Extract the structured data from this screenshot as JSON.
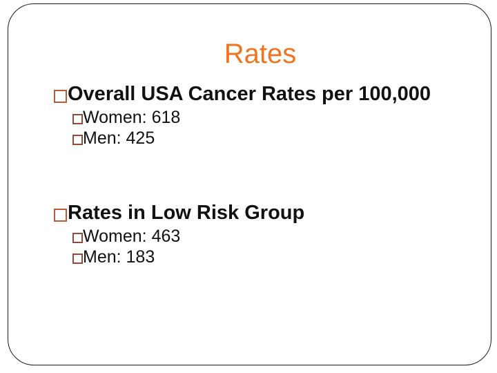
{
  "slide": {
    "title": "Rates",
    "sections": [
      {
        "heading": "Overall USA Cancer Rates per 100,000",
        "items": [
          "Women: 618",
          "Men: 425"
        ]
      },
      {
        "heading": "Rates in Low Risk Group",
        "items": [
          "Women: 463",
          "Men: 183"
        ]
      }
    ]
  },
  "icons": {
    "bullet_level1": "open-square",
    "bullet_level2": "open-square"
  },
  "colors": {
    "title": "#EE7420",
    "bullet_l1": "#B75B39",
    "bullet_l2": "#96493A",
    "text": "#111111",
    "frame": "#1A1A1A",
    "background": "#FFFFFF"
  }
}
